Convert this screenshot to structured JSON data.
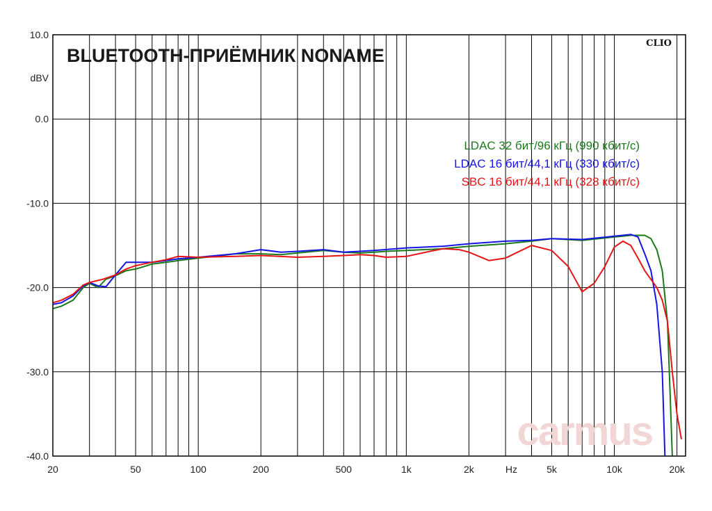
{
  "chart_data": {
    "type": "line",
    "title": "BLUETOOTH-ПРИЁМНИК NONAME",
    "brand": "CLIO",
    "watermark": "carmus",
    "ylabel": "dBV",
    "xlabel": "Hz",
    "x_scale": "log",
    "xlim": [
      20,
      22000
    ],
    "ylim": [
      -40,
      10
    ],
    "grid": true,
    "legend_position": "top-right",
    "x_tick_labels": [
      {
        "value": 20,
        "label": "20"
      },
      {
        "value": 50,
        "label": "50"
      },
      {
        "value": 100,
        "label": "100"
      },
      {
        "value": 200,
        "label": "200"
      },
      {
        "value": 500,
        "label": "500"
      },
      {
        "value": 1000,
        "label": "1k"
      },
      {
        "value": 2000,
        "label": "2k"
      },
      {
        "value": 3200,
        "label": "Hz"
      },
      {
        "value": 5000,
        "label": "5k"
      },
      {
        "value": 10000,
        "label": "10k"
      },
      {
        "value": 20000,
        "label": "20k"
      }
    ],
    "y_tick_labels": [
      {
        "value": 10,
        "label": "10.0"
      },
      {
        "value": 0,
        "label": "0.0"
      },
      {
        "value": -10,
        "label": "-10.0"
      },
      {
        "value": -20,
        "label": "-20.0"
      },
      {
        "value": -30,
        "label": "-30.0"
      },
      {
        "value": -40,
        "label": "-40.0"
      }
    ],
    "series": [
      {
        "name": "LDAC 32 бит/96 кГц (990 кбит/с)",
        "color": "#1a7a1a",
        "points": [
          [
            20,
            -22.5
          ],
          [
            22,
            -22.2
          ],
          [
            25,
            -21.5
          ],
          [
            28,
            -20
          ],
          [
            30,
            -19.5
          ],
          [
            33,
            -20
          ],
          [
            36,
            -19
          ],
          [
            40,
            -18.6
          ],
          [
            45,
            -18
          ],
          [
            50,
            -17.8
          ],
          [
            55,
            -17.5
          ],
          [
            60,
            -17.2
          ],
          [
            70,
            -17
          ],
          [
            80,
            -16.8
          ],
          [
            100,
            -16.5
          ],
          [
            120,
            -16.3
          ],
          [
            150,
            -16
          ],
          [
            200,
            -16
          ],
          [
            250,
            -16.1
          ],
          [
            300,
            -15.9
          ],
          [
            400,
            -15.6
          ],
          [
            500,
            -15.8
          ],
          [
            600,
            -15.9
          ],
          [
            700,
            -15.8
          ],
          [
            800,
            -15.7
          ],
          [
            1000,
            -15.6
          ],
          [
            1500,
            -15.4
          ],
          [
            2000,
            -15.1
          ],
          [
            3000,
            -14.8
          ],
          [
            4000,
            -14.5
          ],
          [
            5000,
            -14.2
          ],
          [
            7000,
            -14.4
          ],
          [
            10000,
            -14
          ],
          [
            12000,
            -13.8
          ],
          [
            14000,
            -13.8
          ],
          [
            15000,
            -14.2
          ],
          [
            16000,
            -15.5
          ],
          [
            17000,
            -18
          ],
          [
            18000,
            -24
          ],
          [
            18500,
            -32
          ],
          [
            19000,
            -40
          ]
        ]
      },
      {
        "name": "LDAC 16 бит/44,1 кГц (330 кбит/с)",
        "color": "#1414e6",
        "points": [
          [
            20,
            -22
          ],
          [
            22,
            -21.8
          ],
          [
            25,
            -21
          ],
          [
            28,
            -19.8
          ],
          [
            30,
            -19.4
          ],
          [
            33,
            -19.8
          ],
          [
            36,
            -19.9
          ],
          [
            40,
            -18.5
          ],
          [
            45,
            -17
          ],
          [
            50,
            -17
          ],
          [
            60,
            -17
          ],
          [
            70,
            -16.8
          ],
          [
            80,
            -16.6
          ],
          [
            100,
            -16.4
          ],
          [
            150,
            -16
          ],
          [
            200,
            -15.5
          ],
          [
            250,
            -15.8
          ],
          [
            300,
            -15.7
          ],
          [
            400,
            -15.5
          ],
          [
            500,
            -15.8
          ],
          [
            700,
            -15.6
          ],
          [
            1000,
            -15.3
          ],
          [
            1500,
            -15.1
          ],
          [
            2000,
            -14.8
          ],
          [
            3000,
            -14.5
          ],
          [
            4000,
            -14.4
          ],
          [
            5000,
            -14.2
          ],
          [
            7000,
            -14.3
          ],
          [
            10000,
            -13.9
          ],
          [
            12000,
            -13.7
          ],
          [
            13000,
            -14
          ],
          [
            14000,
            -16
          ],
          [
            15000,
            -18
          ],
          [
            16000,
            -22
          ],
          [
            17000,
            -30
          ],
          [
            17500,
            -40
          ]
        ]
      },
      {
        "name": "SBC 16 бит/44,1 кГц (328 кбит/с)",
        "color": "#e61414",
        "points": [
          [
            20,
            -21.8
          ],
          [
            22,
            -21.5
          ],
          [
            25,
            -20.8
          ],
          [
            28,
            -19.7
          ],
          [
            30,
            -19.4
          ],
          [
            35,
            -19
          ],
          [
            40,
            -18.5
          ],
          [
            45,
            -17.8
          ],
          [
            50,
            -17.4
          ],
          [
            60,
            -17
          ],
          [
            70,
            -16.7
          ],
          [
            80,
            -16.3
          ],
          [
            100,
            -16.4
          ],
          [
            150,
            -16.3
          ],
          [
            200,
            -16.2
          ],
          [
            300,
            -16.4
          ],
          [
            400,
            -16.3
          ],
          [
            500,
            -16.2
          ],
          [
            600,
            -16.1
          ],
          [
            700,
            -16.2
          ],
          [
            800,
            -16.4
          ],
          [
            1000,
            -16.3
          ],
          [
            1300,
            -15.7
          ],
          [
            1500,
            -15.4
          ],
          [
            1800,
            -15.5
          ],
          [
            2000,
            -15.8
          ],
          [
            2500,
            -16.8
          ],
          [
            3000,
            -16.5
          ],
          [
            4000,
            -15
          ],
          [
            5000,
            -15.6
          ],
          [
            6000,
            -17.5
          ],
          [
            7000,
            -20.5
          ],
          [
            8000,
            -19.5
          ],
          [
            9000,
            -17.5
          ],
          [
            10000,
            -15.2
          ],
          [
            11000,
            -14.5
          ],
          [
            12000,
            -15
          ],
          [
            13000,
            -16.5
          ],
          [
            14000,
            -18
          ],
          [
            16000,
            -20
          ],
          [
            17000,
            -21.5
          ],
          [
            18000,
            -24
          ],
          [
            19000,
            -30
          ],
          [
            20000,
            -35
          ],
          [
            21000,
            -38
          ]
        ]
      }
    ]
  }
}
